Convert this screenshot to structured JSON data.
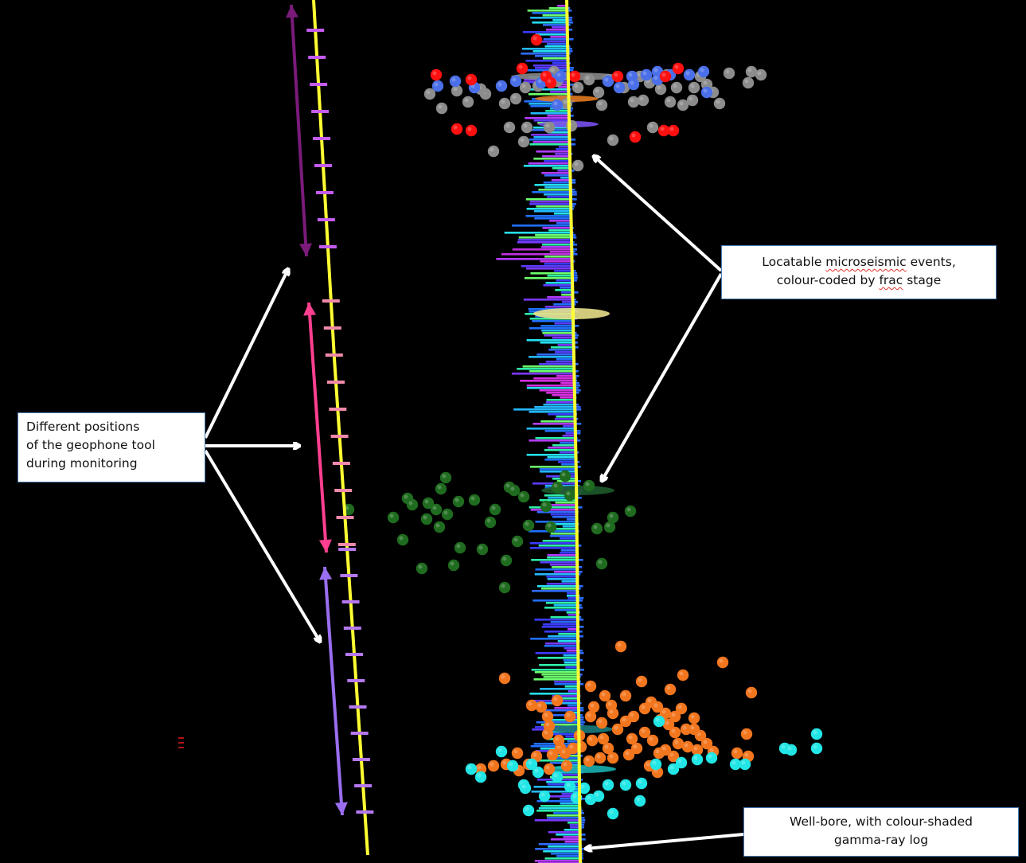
{
  "callouts": {
    "geophone": {
      "lines": [
        "Different positions",
        "of the geophone tool",
        "during monitoring"
      ]
    },
    "events": {
      "line1_a": "Locatable ",
      "line1_b": "microseismic",
      "line1_c": " events,",
      "line2_a": "colour-coded by ",
      "line2_b": "frac",
      "line2_c": " stage"
    },
    "wellbore": {
      "lines": [
        "Well-bore, with colour-shaded",
        "gamma-ray log"
      ]
    }
  },
  "colors": {
    "background": "#000000",
    "wellbore": "#ffff33",
    "arrow_annotation": "#ffffff",
    "tool_position_1": "#7a1b7a",
    "tool_position_2": "#ff3f8f",
    "tool_position_3": "#9a6ef0",
    "geophone_ticks_upper": "#c45cf0",
    "geophone_ticks_middle": "#f08aa8",
    "geophone_ticks_lower": "#b678f0",
    "events_stage_red": "#ff1010",
    "events_stage_blue": "#4a6fe8",
    "events_stage_grey": "#8c8c8c",
    "events_stage_green": "#1f6b1f",
    "events_stage_orange": "#f2761e",
    "events_stage_cyan": "#22e6e6"
  }
}
